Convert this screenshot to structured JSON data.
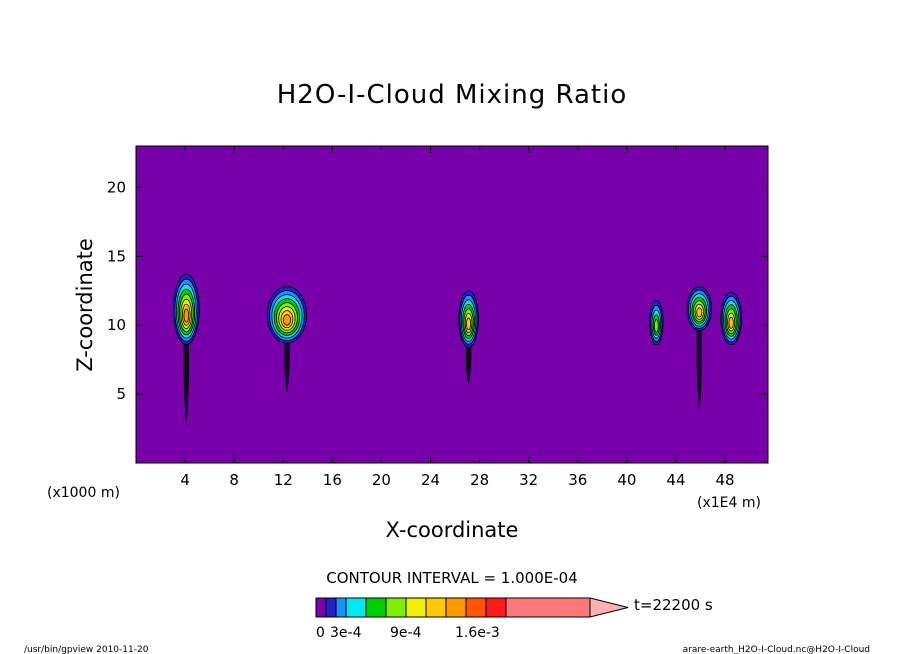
{
  "chart_data": {
    "type": "heatmap",
    "title": "H2O-I-Cloud Mixing Ratio",
    "xlabel": "X-coordinate",
    "ylabel": "Z-coordinate",
    "x_unit_left": "(x1000 m)",
    "x_unit_right": "(x1E4 m)",
    "xlim": [
      0,
      51.5
    ],
    "ylim": [
      0,
      23
    ],
    "x_ticks": [
      4,
      8,
      12,
      16,
      20,
      24,
      28,
      32,
      36,
      40,
      44,
      48
    ],
    "y_ticks": [
      5,
      10,
      15,
      20
    ],
    "contour_interval": "CONTOUR INTERVAL = 1.000E-04",
    "time_label": "t=22200 s",
    "colorbar": {
      "labels": [
        "0",
        "3e-4",
        "9e-4",
        "1.6e-3"
      ],
      "colors": [
        "#7a00b0",
        "#2020c8",
        "#1e90ff",
        "#00e8f0",
        "#00d000",
        "#7cf000",
        "#f0f000",
        "#ffc800",
        "#ff9900",
        "#ff5500",
        "#ff1a1a",
        "#ff7878",
        "#ffb0b0"
      ]
    },
    "background_color": "#7700aa",
    "clouds": [
      {
        "x": 4.1,
        "z_bottom": 8.6,
        "z_top": 13.7,
        "halfwidth": 1.05,
        "max_level": 8,
        "stem_bottom": 3.0
      },
      {
        "x": 12.3,
        "z_bottom": 8.7,
        "z_top": 12.8,
        "halfwidth": 1.6,
        "max_level": 8,
        "stem_bottom": 5.2
      },
      {
        "x": 27.1,
        "z_bottom": 8.4,
        "z_top": 12.5,
        "halfwidth": 0.8,
        "max_level": 7,
        "stem_bottom": 5.8
      },
      {
        "x": 42.4,
        "z_bottom": 8.6,
        "z_top": 11.8,
        "halfwidth": 0.55,
        "max_level": 5,
        "stem_bottom": 8.6
      },
      {
        "x": 45.9,
        "z_bottom": 9.6,
        "z_top": 12.8,
        "halfwidth": 1.0,
        "max_level": 7,
        "stem_bottom": 4.0
      },
      {
        "x": 48.5,
        "z_bottom": 8.6,
        "z_top": 12.4,
        "halfwidth": 0.85,
        "max_level": 7,
        "stem_bottom": 8.6
      }
    ],
    "footer_left": "/usr/bin/gpview  2010-11-20",
    "footer_right": "arare-earth_H2O-I-Cloud.nc@H2O-I-Cloud"
  }
}
